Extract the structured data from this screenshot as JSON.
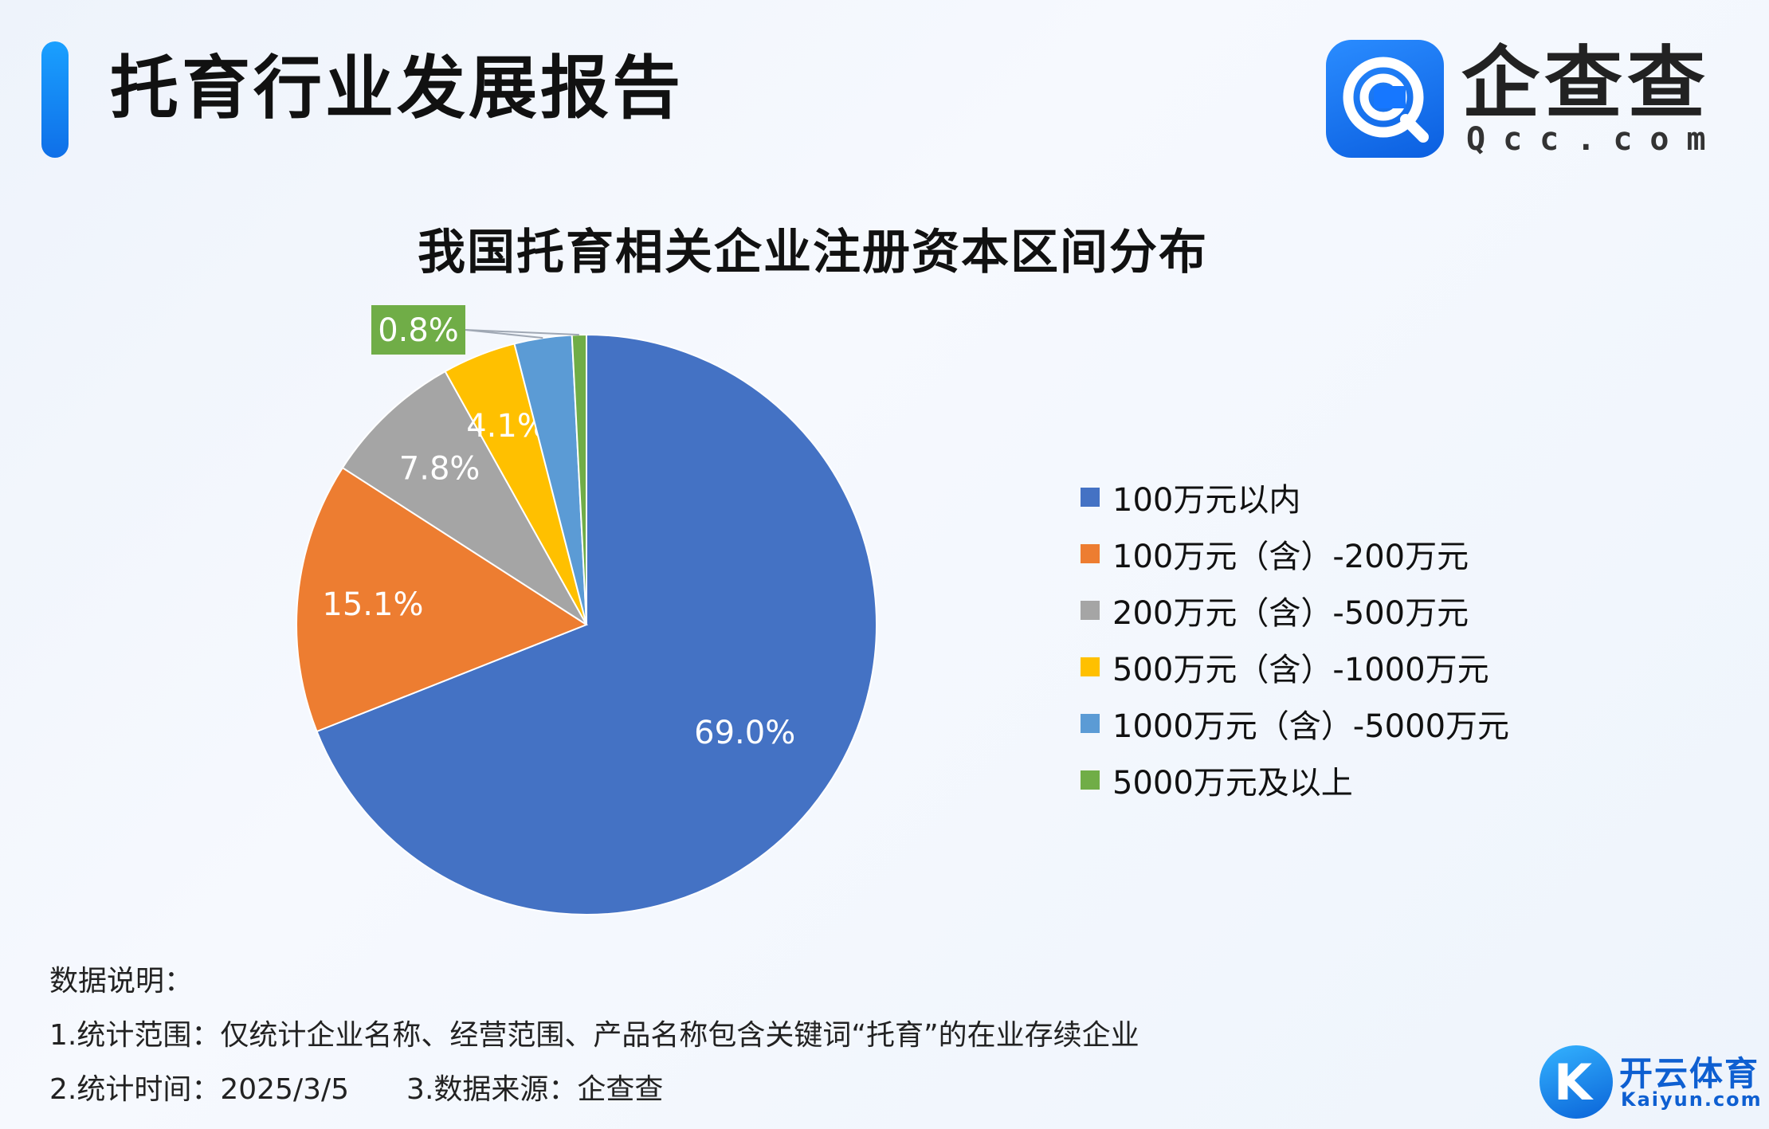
{
  "header": {
    "title": "托育行业发展报告"
  },
  "logo": {
    "text_cn": "企查查",
    "text_en": "Qcc.com",
    "icon": "qcc-logo-icon",
    "color": "#1677ff"
  },
  "chart_data": {
    "type": "pie",
    "title": "我国托育相关企业注册资本区间分布",
    "legend_position": "right",
    "slices": [
      {
        "label": "100万元以内",
        "value": 69.0,
        "value_label": "69.0%",
        "color": "#4472c4"
      },
      {
        "label": "100万元（含）-200万元",
        "value": 15.1,
        "value_label": "15.1%",
        "color": "#ed7d31"
      },
      {
        "label": "200万元（含）-500万元",
        "value": 7.8,
        "value_label": "7.8%",
        "color": "#a5a5a5"
      },
      {
        "label": "500万元（含）-1000万元",
        "value": 4.1,
        "value_label": "4.1%",
        "color": "#ffc000"
      },
      {
        "label": "1000万元（含）-5000万元",
        "value": 3.2,
        "value_label": "3.2%",
        "color": "#5b9bd5"
      },
      {
        "label": "5000万元及以上",
        "value": 0.8,
        "value_label": "0.8%",
        "color": "#70ad47"
      }
    ]
  },
  "notes": {
    "heading": "数据说明：",
    "line1": "1.统计范围：仅统计企业名称、经营范围、产品名称包含关键词“托育”的在业存续企业",
    "line2a": "2.统计时间：2025/3/5",
    "line2b": "3.数据来源：企查查"
  },
  "watermark": {
    "text_cn": "开云体育",
    "text_en": "Kaiyun.com",
    "icon": "kaiyun-logo-icon"
  }
}
